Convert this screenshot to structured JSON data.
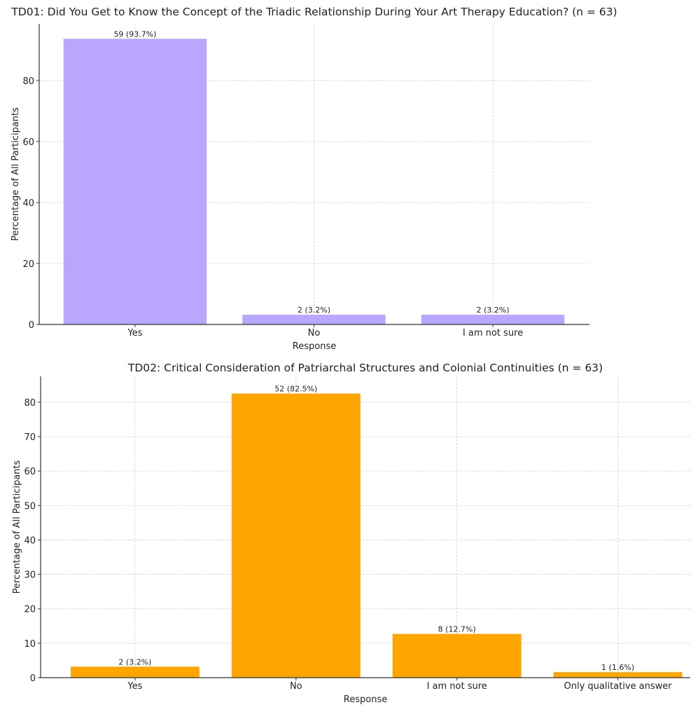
{
  "chart_data": [
    {
      "type": "bar",
      "title": "TD01: Did You Get to Know the Concept of the Triadic Relationship During Your Art Therapy Education? (n = 63)",
      "xlabel": "Response",
      "ylabel": "Percentage of All Participants",
      "categories": [
        "Yes",
        "No",
        "I am not sure"
      ],
      "values": [
        93.7,
        3.2,
        3.2
      ],
      "data_labels": [
        "59 (93.7%)",
        "2 (3.2%)",
        "2 (3.2%)"
      ],
      "yticks": [
        0,
        20,
        40,
        60,
        80
      ],
      "ylim": [
        0,
        98.6
      ],
      "grid": true,
      "color": "#b8a6ff"
    },
    {
      "type": "bar",
      "title": "TD02: Critical Consideration of Patriarchal Structures and Colonial Continuities (n = 63)",
      "xlabel": "Response",
      "ylabel": "Percentage of All Participants",
      "categories": [
        "Yes",
        "No",
        "I am not sure",
        "Only qualitative answer"
      ],
      "values": [
        3.2,
        82.5,
        12.7,
        1.6
      ],
      "data_labels": [
        "2 (3.2%)",
        "52 (82.5%)",
        "8 (12.7%)",
        "1 (1.6%)"
      ],
      "yticks": [
        0,
        10,
        20,
        30,
        40,
        50,
        60,
        70,
        80
      ],
      "ylim": [
        0,
        87.5
      ],
      "grid": true,
      "color": "#ffa500"
    }
  ]
}
